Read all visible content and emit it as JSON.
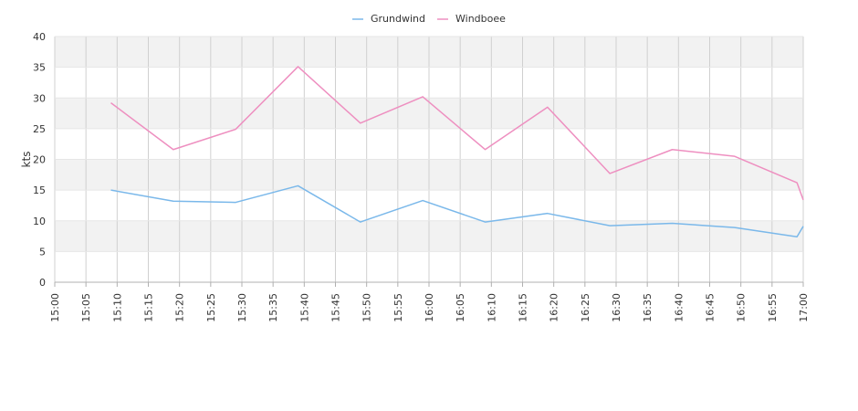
{
  "chart_data": {
    "type": "line",
    "xlabel": "",
    "ylabel": "kts",
    "ylim": [
      0,
      40
    ],
    "yticks": [
      "0",
      "5",
      "10",
      "15",
      "20",
      "25",
      "30",
      "35",
      "40"
    ],
    "xticks": [
      "15:00",
      "15:05",
      "15:10",
      "15:15",
      "15:20",
      "15:25",
      "15:30",
      "15:35",
      "15:40",
      "15:45",
      "15:50",
      "15:55",
      "16:00",
      "16:05",
      "16:10",
      "16:15",
      "16:20",
      "16:25",
      "16:30",
      "16:35",
      "16:40",
      "16:45",
      "16:50",
      "16:55",
      "17:00"
    ],
    "grid": true,
    "legend_position": "top-center",
    "series": [
      {
        "name": "Grundwind",
        "color": "#7ab8ea",
        "x": [
          "15:09",
          "15:19",
          "15:29",
          "15:39",
          "15:49",
          "15:59",
          "16:09",
          "16:19",
          "16:29",
          "16:39",
          "16:49",
          "16:59",
          "17:00"
        ],
        "values": [
          15.0,
          13.2,
          13.0,
          15.7,
          9.8,
          13.3,
          9.8,
          11.2,
          9.2,
          9.6,
          8.9,
          7.4,
          9.1
        ]
      },
      {
        "name": "Windboee",
        "color": "#ee8fc0",
        "x": [
          "15:09",
          "15:19",
          "15:29",
          "15:39",
          "15:49",
          "15:59",
          "16:09",
          "16:19",
          "16:29",
          "16:39",
          "16:49",
          "16:59",
          "17:00"
        ],
        "values": [
          29.2,
          21.6,
          24.9,
          35.1,
          25.9,
          30.2,
          21.6,
          28.5,
          17.7,
          21.6,
          20.5,
          16.2,
          13.4
        ]
      }
    ]
  }
}
